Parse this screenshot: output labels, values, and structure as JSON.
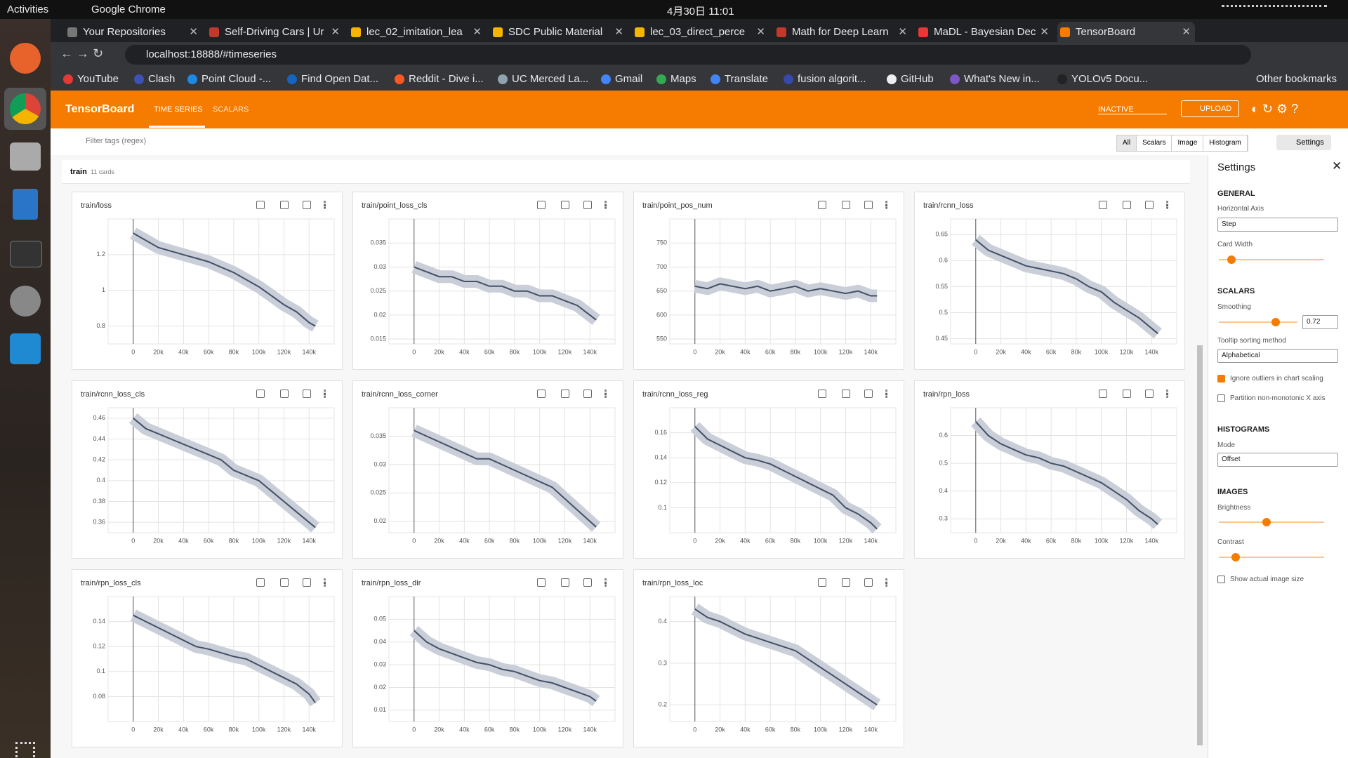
{
  "system_bar": {
    "activities": "Activities",
    "app": "Google Chrome",
    "clock": "4月30日 11:01"
  },
  "browser": {
    "tabs": [
      "Your Repositories",
      "Self-Driving Cars | Ur",
      "lec_02_imitation_lea",
      "SDC Public Material",
      "lec_03_direct_perce",
      "Math for Deep Learn",
      "MaDL - Bayesian Dec",
      "TensorBoard"
    ],
    "url": "localhost:18888/#timeseries",
    "bookmarks": [
      "YouTube",
      "Clash",
      "Point Cloud -...",
      "Find Open Dat...",
      "Reddit - Dive i...",
      "UC Merced La...",
      "Gmail",
      "Maps",
      "Translate",
      "fusion algorit...",
      "GitHub",
      "What's New in...",
      "YOLOv5 Docu..."
    ],
    "other_bookmarks": "Other bookmarks"
  },
  "tensorboard": {
    "title": "TensorBoard",
    "tabs": [
      "TIME SERIES",
      "SCALARS"
    ],
    "status": "INACTIVE",
    "upload": "UPLOAD",
    "filter_placeholder": "Filter tags (regex)",
    "type_filters": [
      "All",
      "Scalars",
      "Image",
      "Histogram"
    ],
    "settings_button": "Settings",
    "group": {
      "name": "train",
      "count": "11 cards"
    },
    "x_axis": {
      "xlim": [
        -20000,
        160000
      ],
      "xticks": [
        0,
        {
          "value": 20000,
          "label": "20k"
        },
        {
          "value": 40000,
          "label": "40k"
        },
        {
          "value": 60000,
          "label": "60k"
        },
        {
          "value": 80000,
          "label": "80k"
        },
        {
          "value": 100000,
          "label": "100k"
        },
        {
          "value": 120000,
          "label": "120k"
        },
        {
          "value": 140000,
          "label": "140k"
        }
      ]
    },
    "steps": [
      0,
      10000,
      20000,
      30000,
      40000,
      50000,
      60000,
      70000,
      80000,
      90000,
      100000,
      110000,
      120000,
      130000,
      140000,
      145000
    ],
    "cards": [
      {
        "title": "train/loss",
        "ylim": [
          0.7,
          1.4
        ],
        "yticks": [
          0.8,
          1,
          1.2
        ],
        "values": [
          1.32,
          1.28,
          1.24,
          1.22,
          1.2,
          1.18,
          1.16,
          1.13,
          1.1,
          1.06,
          1.02,
          0.97,
          0.92,
          0.88,
          0.82,
          0.8
        ]
      },
      {
        "title": "train/point_loss_cls",
        "ylim": [
          0.014,
          0.04
        ],
        "yticks": [
          0.015,
          0.02,
          0.025,
          0.03,
          0.035
        ],
        "values": [
          0.03,
          0.029,
          0.028,
          0.028,
          0.027,
          0.027,
          0.026,
          0.026,
          0.025,
          0.025,
          0.024,
          0.024,
          0.023,
          0.022,
          0.02,
          0.019
        ]
      },
      {
        "title": "train/point_pos_num",
        "ylim": [
          540,
          800
        ],
        "yticks": [
          550,
          600,
          650,
          700,
          750
        ],
        "values": [
          660,
          655,
          665,
          660,
          655,
          660,
          650,
          655,
          660,
          650,
          655,
          650,
          645,
          650,
          640,
          640
        ]
      },
      {
        "title": "train/rcnn_loss",
        "ylim": [
          0.44,
          0.68
        ],
        "yticks": [
          0.45,
          0.5,
          0.55,
          0.6,
          0.65
        ],
        "values": [
          0.64,
          0.62,
          0.61,
          0.6,
          0.59,
          0.585,
          0.58,
          0.575,
          0.565,
          0.55,
          0.54,
          0.52,
          0.505,
          0.49,
          0.47,
          0.46
        ]
      },
      {
        "title": "train/rcnn_loss_cls",
        "ylim": [
          0.35,
          0.47
        ],
        "yticks": [
          0.36,
          0.38,
          0.4,
          0.42,
          0.44,
          0.46
        ],
        "values": [
          0.46,
          0.45,
          0.445,
          0.44,
          0.435,
          0.43,
          0.425,
          0.42,
          0.41,
          0.405,
          0.4,
          0.39,
          0.38,
          0.37,
          0.36,
          0.355
        ]
      },
      {
        "title": "train/rcnn_loss_corner",
        "ylim": [
          0.018,
          0.04
        ],
        "yticks": [
          0.02,
          0.025,
          0.03,
          0.035
        ],
        "values": [
          0.036,
          0.035,
          0.034,
          0.033,
          0.032,
          0.031,
          0.031,
          0.03,
          0.029,
          0.028,
          0.027,
          0.026,
          0.024,
          0.022,
          0.02,
          0.019
        ]
      },
      {
        "title": "train/rcnn_loss_reg",
        "ylim": [
          0.08,
          0.18
        ],
        "yticks": [
          0.1,
          0.12,
          0.14,
          0.16
        ],
        "values": [
          0.165,
          0.155,
          0.15,
          0.145,
          0.14,
          0.138,
          0.135,
          0.13,
          0.125,
          0.12,
          0.115,
          0.11,
          0.1,
          0.095,
          0.088,
          0.083
        ]
      },
      {
        "title": "train/rpn_loss",
        "ylim": [
          0.25,
          0.7
        ],
        "yticks": [
          0.3,
          0.4,
          0.5,
          0.6
        ],
        "values": [
          0.65,
          0.6,
          0.57,
          0.55,
          0.53,
          0.52,
          0.5,
          0.49,
          0.47,
          0.45,
          0.43,
          0.4,
          0.37,
          0.33,
          0.3,
          0.28
        ]
      },
      {
        "title": "train/rpn_loss_cls",
        "ylim": [
          0.06,
          0.16
        ],
        "yticks": [
          0.08,
          0.1,
          0.12,
          0.14
        ],
        "values": [
          0.145,
          0.14,
          0.135,
          0.13,
          0.125,
          0.12,
          0.118,
          0.115,
          0.112,
          0.11,
          0.105,
          0.1,
          0.095,
          0.09,
          0.082,
          0.075
        ]
      },
      {
        "title": "train/rpn_loss_dir",
        "ylim": [
          0.005,
          0.06
        ],
        "yticks": [
          0.01,
          0.02,
          0.03,
          0.04,
          0.05
        ],
        "values": [
          0.045,
          0.04,
          0.037,
          0.035,
          0.033,
          0.031,
          0.03,
          0.028,
          0.027,
          0.025,
          0.023,
          0.022,
          0.02,
          0.018,
          0.016,
          0.014
        ]
      },
      {
        "title": "train/rpn_loss_loc",
        "ylim": [
          0.16,
          0.46
        ],
        "yticks": [
          0.2,
          0.3,
          0.4
        ],
        "values": [
          0.43,
          0.41,
          0.4,
          0.385,
          0.37,
          0.36,
          0.35,
          0.34,
          0.33,
          0.31,
          0.29,
          0.27,
          0.25,
          0.23,
          0.21,
          0.2
        ]
      }
    ],
    "settings": {
      "title": "Settings",
      "general": "GENERAL",
      "horizontal_axis": "Horizontal Axis",
      "horizontal_axis_value": "Step",
      "card_width": "Card Width",
      "scalars": "SCALARS",
      "smoothing": "Smoothing",
      "smoothing_value": 0.72,
      "tooltip_sorting": "Tooltip sorting method",
      "tooltip_sorting_value": "Alphabetical",
      "ignore_outliers": "Ignore outliers in chart scaling",
      "partition": "Partition non-monotonic X axis",
      "histograms": "HISTOGRAMS",
      "mode": "Mode",
      "mode_value": "Offset",
      "images": "IMAGES",
      "brightness": "Brightness",
      "contrast": "Contrast",
      "show_actual": "Show actual image size"
    }
  }
}
